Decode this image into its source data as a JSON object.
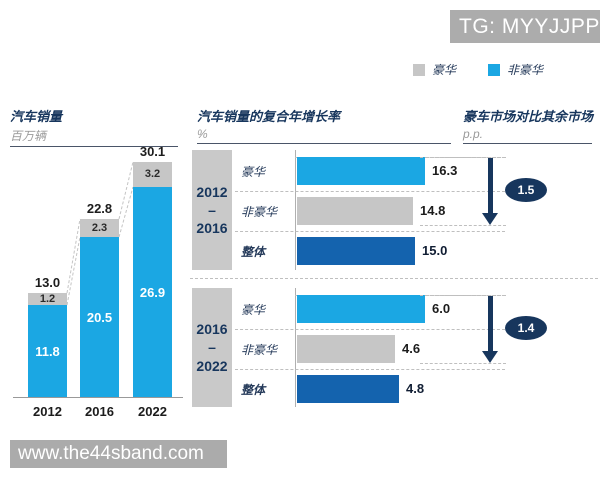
{
  "watermark": {
    "tg_label": "TG: MYYJJPP",
    "url_label": "www.the44sband.com"
  },
  "legend": {
    "items": [
      {
        "label": "豪华",
        "color": "#C6C6C6"
      },
      {
        "label": "非豪华",
        "color": "#1BA7E3"
      }
    ]
  },
  "colors": {
    "luxury_gray": "#C6C6C6",
    "nonluxury_blue": "#1BA7E3",
    "overall_blue": "#1463AE",
    "navy": "#17365D",
    "axis_gray": "#999999",
    "connector_gray": "#c4c4c4",
    "block_gray": "#C9C9C9"
  },
  "chart_data": [
    {
      "type": "bar",
      "variant": "stacked-column",
      "title": "汽车销量",
      "unit": "百万辆",
      "categories": [
        "2012",
        "2016",
        "2022"
      ],
      "series": [
        {
          "name": "非豪华",
          "color": "#1BA7E3",
          "values": [
            11.8,
            20.5,
            26.9
          ]
        },
        {
          "name": "豪华",
          "color": "#C6C6C6",
          "values": [
            1.2,
            2.3,
            3.2
          ]
        }
      ],
      "totals": [
        13.0,
        22.8,
        30.1
      ],
      "ylim": [
        0,
        32
      ],
      "grid": false
    },
    {
      "type": "bar",
      "variant": "horizontal-grouped",
      "title": "汽车销量的复合年增长率",
      "unit": "%",
      "groups": [
        {
          "period_lines": [
            "2012",
            "–",
            "2016"
          ],
          "rows": [
            {
              "label": "豪华",
              "value": 16.3,
              "color": "#1BA7E3",
              "emphasis": false
            },
            {
              "label": "非豪华",
              "value": 14.8,
              "color": "#C6C6C6",
              "emphasis": false
            },
            {
              "label": "整体",
              "value": 15.0,
              "color": "#1463AE",
              "emphasis": true
            }
          ]
        },
        {
          "period_lines": [
            "2016",
            "–",
            "2022"
          ],
          "rows": [
            {
              "label": "豪华",
              "value": 6.0,
              "color": "#1BA7E3",
              "emphasis": false
            },
            {
              "label": "非豪华",
              "value": 4.6,
              "color": "#C6C6C6",
              "emphasis": false
            },
            {
              "label": "整体",
              "value": 4.8,
              "color": "#1463AE",
              "emphasis": true
            }
          ]
        }
      ]
    },
    {
      "type": "annotation",
      "title": "豪车市场对比其余市场",
      "unit": "p.p.",
      "direction": "down",
      "values": [
        1.5,
        1.4
      ]
    }
  ]
}
